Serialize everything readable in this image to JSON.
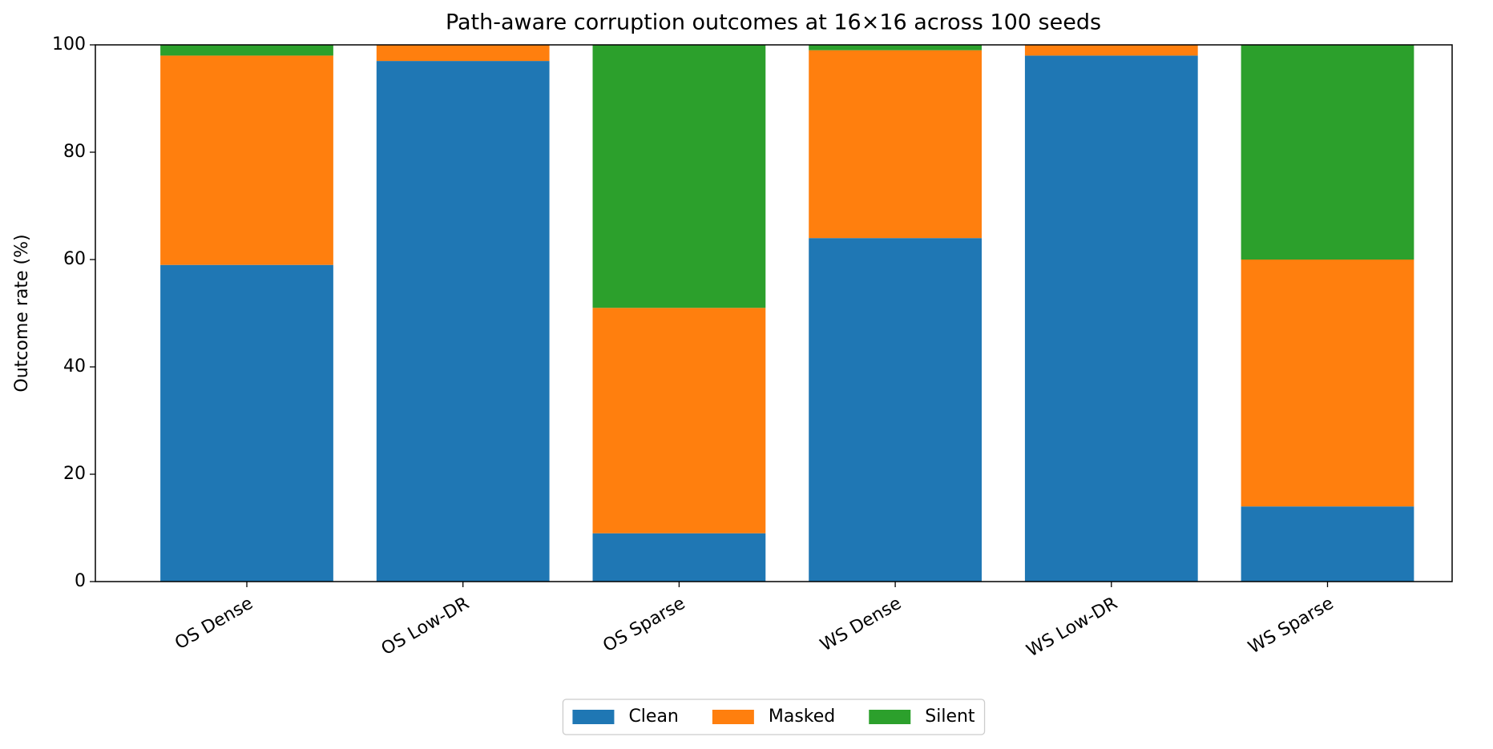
{
  "chart_data": {
    "type": "stacked_bar",
    "title": "Path-aware corruption outcomes at 16×16 across 100 seeds",
    "y_label": "Outcome rate (%)",
    "categories": [
      "OS Dense",
      "OS Low-DR",
      "OS Sparse",
      "WS Dense",
      "WS Low-DR",
      "WS Sparse"
    ],
    "series": [
      {
        "name": "Clean",
        "color": "#1f77b4",
        "values": [
          59,
          97,
          9,
          64,
          98,
          14
        ]
      },
      {
        "name": "Masked",
        "color": "#ff7f0e",
        "values": [
          39,
          3,
          42,
          35,
          2,
          46
        ]
      },
      {
        "name": "Silent",
        "color": "#2ca02c",
        "values": [
          2,
          0,
          49,
          1,
          0,
          40
        ]
      }
    ],
    "ylim": [
      0,
      100
    ],
    "yticks": [
      0,
      20,
      40,
      60,
      80,
      100
    ],
    "legend": "bottom"
  }
}
